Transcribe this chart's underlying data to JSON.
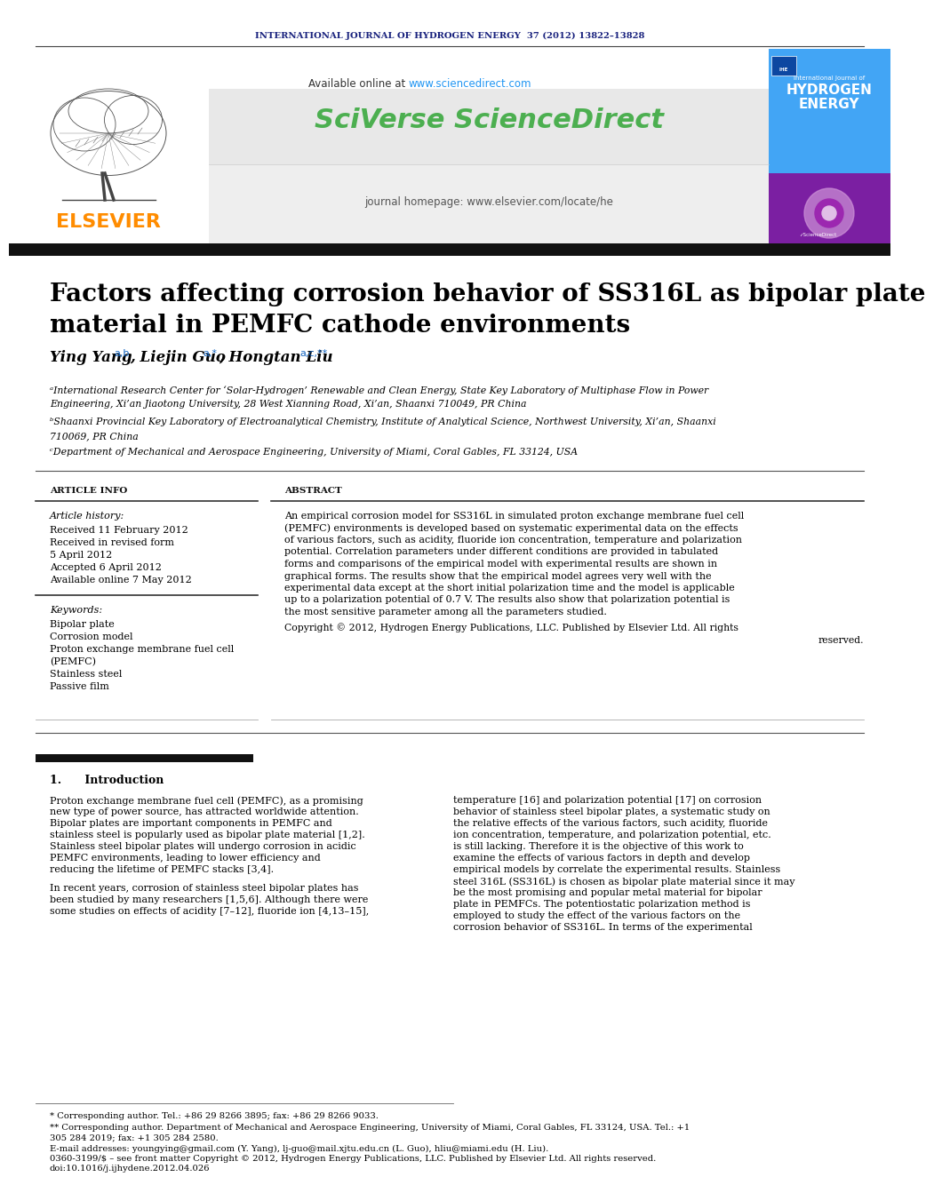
{
  "journal_header": "INTERNATIONAL JOURNAL OF HYDROGEN ENERGY  37 (2012) 13822–13828",
  "journal_header_color": "#1a237e",
  "sciencedirect_url": "www.sciencedirect.com",
  "sciencedirect_url_color": "#2196F3",
  "sciverse_text": "SciVerse ScienceDirect",
  "sciverse_color": "#4CAF50",
  "elsevier_text": "ELSEVIER",
  "elsevier_color": "#FF8C00",
  "journal_homepage": "journal homepage: www.elsevier.com/locate/he",
  "title_line1": "Factors affecting corrosion behavior of SS316L as bipolar plate",
  "title_line2": "material in PEMFC cathode environments",
  "affiliation_a": "ᵃInternational Research Center for ‘Solar-Hydrogen’ Renewable and Clean Energy, State Key Laboratory of Multiphase Flow in Power",
  "affiliation_a2": "Engineering, Xi’an Jiaotong University, 28 West Xianning Road, Xi’an, Shaanxi 710049, PR China",
  "affiliation_b": "ᵇShaanxi Provincial Key Laboratory of Electroanalytical Chemistry, Institute of Analytical Science, Northwest University, Xi’an, Shaanxi",
  "affiliation_b2": "710069, PR China",
  "affiliation_c": "ᶜDepartment of Mechanical and Aerospace Engineering, University of Miami, Coral Gables, FL 33124, USA",
  "article_info_header": "ARTICLE INFO",
  "abstract_header": "ABSTRACT",
  "article_history_label": "Article history:",
  "received1": "Received 11 February 2012",
  "received2": "Received in revised form",
  "received2b": "5 April 2012",
  "accepted": "Accepted 6 April 2012",
  "available": "Available online 7 May 2012",
  "keywords_label": "Keywords:",
  "keywords": [
    "Bipolar plate",
    "Corrosion model",
    "Proton exchange membrane fuel cell",
    "(PEMFC)",
    "Stainless steel",
    "Passive film"
  ],
  "abstract_text_lines": [
    "An empirical corrosion model for SS316L in simulated proton exchange membrane fuel cell",
    "(PEMFC) environments is developed based on systematic experimental data on the effects",
    "of various factors, such as acidity, fluoride ion concentration, temperature and polarization",
    "potential. Correlation parameters under different conditions are provided in tabulated",
    "forms and comparisons of the empirical model with experimental results are shown in",
    "graphical forms. The results show that the empirical model agrees very well with the",
    "experimental data except at the short initial polarization time and the model is applicable",
    "up to a polarization potential of 0.7 V. The results also show that polarization potential is",
    "the most sensitive parameter among all the parameters studied."
  ],
  "copyright_line1": "Copyright © 2012, Hydrogen Energy Publications, LLC. Published by Elsevier Ltd. All rights",
  "copyright_line2": "reserved.",
  "intro_text_left_lines": [
    "Proton exchange membrane fuel cell (PEMFC), as a promising",
    "new type of power source, has attracted worldwide attention.",
    "Bipolar plates are important components in PEMFC and",
    "stainless steel is popularly used as bipolar plate material [1,2].",
    "Stainless steel bipolar plates will undergo corrosion in acidic",
    "PEMFC environments, leading to lower efficiency and",
    "reducing the lifetime of PEMFC stacks [3,4].",
    "",
    "In recent years, corrosion of stainless steel bipolar plates has",
    "been studied by many researchers [1,5,6]. Although there were",
    "some studies on effects of acidity [7–12], fluoride ion [4,13–15],"
  ],
  "intro_text_right_lines": [
    "temperature [16] and polarization potential [17] on corrosion",
    "behavior of stainless steel bipolar plates, a systematic study on",
    "the relative effects of the various factors, such acidity, fluoride",
    "ion concentration, temperature, and polarization potential, etc.",
    "is still lacking. Therefore it is the objective of this work to",
    "examine the effects of various factors in depth and develop",
    "empirical models by correlate the experimental results. Stainless",
    "steel 316L (SS316L) is chosen as bipolar plate material since it may",
    "be the most promising and popular metal material for bipolar",
    "plate in PEMFCs. The potentiostatic polarization method is",
    "employed to study the effect of the various factors on the",
    "corrosion behavior of SS316L. In terms of the experimental"
  ],
  "footnote_star": "* Corresponding author. Tel.: +86 29 8266 3895; fax: +86 29 8266 9033.",
  "footnote_dstar1": "** Corresponding author. Department of Mechanical and Aerospace Engineering, University of Miami, Coral Gables, FL 33124, USA. Tel.: +1",
  "footnote_dstar2": "305 284 2019; fax: +1 305 284 2580.",
  "footnote_email": "E-mail addresses: youngying@gmail.com (Y. Yang), lj-guo@mail.xjtu.edu.cn (L. Guo), hliu@miami.edu (H. Liu).",
  "footnote_issn": "0360-3199/$ – see front matter Copyright © 2012, Hydrogen Energy Publications, LLC. Published by Elsevier Ltd. All rights reserved.",
  "footnote_doi": "doi:10.1016/j.ijhydene.2012.04.026",
  "bg_color": "#ffffff"
}
